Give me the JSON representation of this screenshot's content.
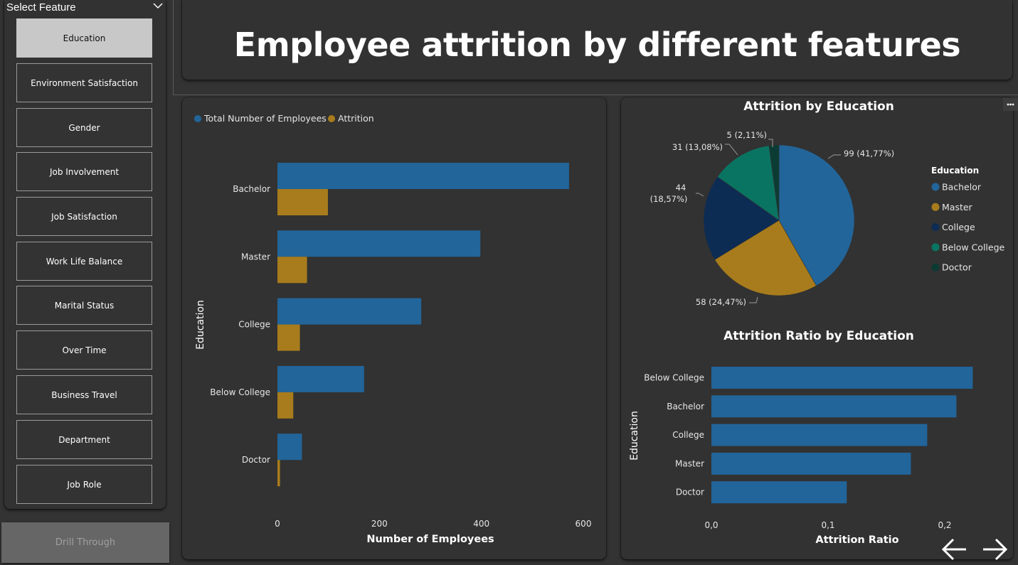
{
  "sidebar": {
    "title": "Select Feature",
    "items": [
      {
        "label": "Education",
        "selected": true
      },
      {
        "label": "Environment Satisfaction",
        "selected": false
      },
      {
        "label": "Gender",
        "selected": false
      },
      {
        "label": "Job Involvement",
        "selected": false
      },
      {
        "label": "Job Satisfaction",
        "selected": false
      },
      {
        "label": "Work Life Balance",
        "selected": false
      },
      {
        "label": "Marital Status",
        "selected": false
      },
      {
        "label": "Over Time",
        "selected": false
      },
      {
        "label": "Business Travel",
        "selected": false
      },
      {
        "label": "Department",
        "selected": false
      },
      {
        "label": "Job Role",
        "selected": false
      }
    ],
    "drill_through_label": "Drill Through"
  },
  "header": {
    "title": "Employee attrition by different features"
  },
  "colors": {
    "total": "#22659a",
    "attrition": "#a87c1c",
    "bachelor": "#22659a",
    "master": "#a87c1c",
    "college": "#0d2c54",
    "below_college": "#0a7462",
    "doctor": "#0c3b33",
    "background": "#323232",
    "axis_text": "#e6e6e6"
  },
  "icons": {
    "more": "more-options-icon",
    "chevron": "chevron-down-icon",
    "back": "back-arrow-icon",
    "forward": "forward-arrow-icon"
  },
  "chart_data": [
    {
      "type": "bar",
      "orientation": "horizontal",
      "legend": [
        "Total Number of Employees",
        "Attrition"
      ],
      "legend_position": "top-left",
      "categories": [
        "Bachelor",
        "Master",
        "College",
        "Below College",
        "Doctor"
      ],
      "series": [
        {
          "name": "Total Number of Employees",
          "values": [
            572,
            398,
            282,
            170,
            48
          ]
        },
        {
          "name": "Attrition",
          "values": [
            99,
            58,
            44,
            31,
            5
          ]
        }
      ],
      "xlabel": "Number of Employees",
      "ylabel": "Education",
      "xlim": [
        0,
        600
      ],
      "xticks": [
        "0",
        "200",
        "400",
        "600"
      ],
      "grid": false
    },
    {
      "type": "pie",
      "title": "Attrition by Education",
      "legend_title": "Education",
      "legend_position": "right",
      "slices": [
        {
          "label": "Bachelor",
          "value": 99,
          "data_label": "99 (41,77%)"
        },
        {
          "label": "Master",
          "value": 58,
          "data_label": "58 (24,47%)"
        },
        {
          "label": "College",
          "value": 44,
          "data_label_line1": "44",
          "data_label_line2": "(18,57%)"
        },
        {
          "label": "Below College",
          "value": 31,
          "data_label": "31 (13,08%)"
        },
        {
          "label": "Doctor",
          "value": 5,
          "data_label": "5 (2,11%)"
        }
      ]
    },
    {
      "type": "bar",
      "orientation": "horizontal",
      "title": "Attrition Ratio by Education",
      "categories": [
        "Below College",
        "Bachelor",
        "College",
        "Master",
        "Doctor"
      ],
      "values": [
        0.224,
        0.21,
        0.185,
        0.171,
        0.116
      ],
      "xlabel": "Attrition Ratio",
      "ylabel": "Education",
      "xlim": [
        0,
        0.24
      ],
      "xticks": [
        "0,0",
        "0,1",
        "0,2"
      ],
      "grid": false
    }
  ]
}
